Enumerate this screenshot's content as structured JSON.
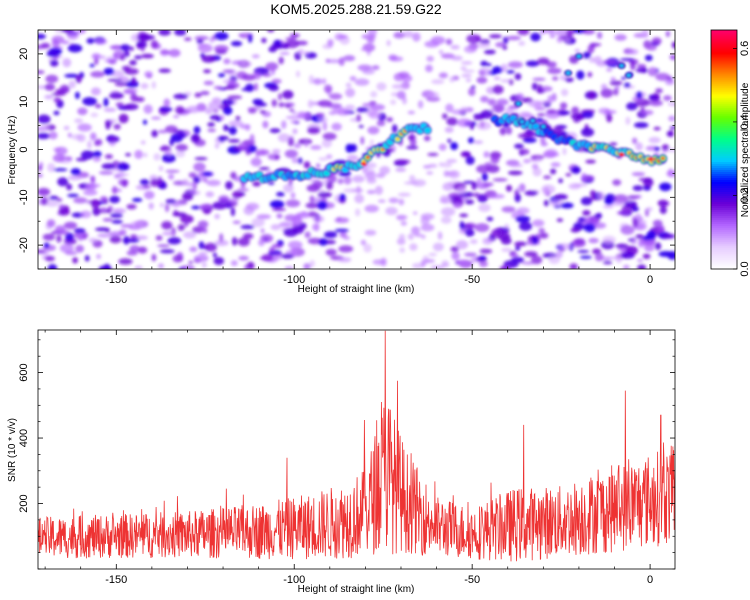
{
  "title": "KOM5.2025.288.21.59.G22",
  "chart_data": [
    {
      "type": "heatmap",
      "xlabel": "Height of straight line (km)",
      "ylabel": "Frequency (Hz)",
      "xlim": [
        -172,
        7
      ],
      "ylim": [
        -25,
        25
      ],
      "xticks": [
        -150,
        -100,
        -50,
        0
      ],
      "xtick_labels": [
        "-150",
        "-100",
        "-50",
        "0"
      ],
      "yticks": [
        -20,
        -10,
        0,
        10,
        20
      ],
      "ytick_labels": [
        "-20",
        "-10",
        "0",
        "10",
        "20"
      ],
      "colorbar": {
        "label": "Normalized spectral amplitude",
        "range": [
          0.0,
          0.65
        ],
        "ticks": [
          0.0,
          0.2,
          0.4,
          0.6
        ],
        "tick_labels": [
          "0.0",
          "0.2",
          "0.4",
          "0.6"
        ],
        "colormap": [
          "#ffffff",
          "#e6ccff",
          "#b266ff",
          "#6a00d6",
          "#0000ff",
          "#00ccff",
          "#00ff88",
          "#66ff00",
          "#ffff00",
          "#ff8800",
          "#ff0000",
          "#ff0066"
        ]
      },
      "ridge": [
        {
          "x": -114,
          "y": -6
        },
        {
          "x": -105,
          "y": -5.5
        },
        {
          "x": -95,
          "y": -5
        },
        {
          "x": -88,
          "y": -4
        },
        {
          "x": -82,
          "y": -3
        },
        {
          "x": -78,
          "y": -1
        },
        {
          "x": -72,
          "y": 2
        },
        {
          "x": -68,
          "y": 4
        },
        {
          "x": -62,
          "y": 4.5
        },
        {
          "x": -48,
          "y": 5.5
        },
        {
          "x": -40,
          "y": 6.5
        },
        {
          "x": -34,
          "y": 5
        },
        {
          "x": -28,
          "y": 3
        },
        {
          "x": -20,
          "y": 1
        },
        {
          "x": -12,
          "y": 0
        },
        {
          "x": -5,
          "y": -1
        },
        {
          "x": 0,
          "y": -2
        },
        {
          "x": 4,
          "y": -2.5
        }
      ]
    },
    {
      "type": "line",
      "xlabel": "Height of straight line (km)",
      "ylabel": "SNR (10 * v/v)",
      "xlim": [
        -172,
        7
      ],
      "ylim": [
        0,
        730
      ],
      "xticks": [
        -150,
        -100,
        -50,
        0
      ],
      "xtick_labels": [
        "-150",
        "-100",
        "-50",
        "0"
      ],
      "yticks": [
        200,
        400,
        600
      ],
      "ytick_labels": [
        "200",
        "400",
        "600"
      ],
      "series_color": "#ee3333",
      "envelope": [
        {
          "x": -172,
          "mean": 95,
          "amp": 75
        },
        {
          "x": -150,
          "mean": 100,
          "amp": 80
        },
        {
          "x": -130,
          "mean": 105,
          "amp": 85
        },
        {
          "x": -110,
          "mean": 115,
          "amp": 100
        },
        {
          "x": -95,
          "mean": 130,
          "amp": 120
        },
        {
          "x": -85,
          "mean": 150,
          "amp": 140
        },
        {
          "x": -80,
          "mean": 175,
          "amp": 160
        },
        {
          "x": -76,
          "mean": 260,
          "amp": 250
        },
        {
          "x": -74,
          "mean": 300,
          "amp": 320
        },
        {
          "x": -72,
          "mean": 260,
          "amp": 250
        },
        {
          "x": -68,
          "mean": 200,
          "amp": 180
        },
        {
          "x": -60,
          "mean": 130,
          "amp": 110
        },
        {
          "x": -50,
          "mean": 110,
          "amp": 95
        },
        {
          "x": -38,
          "mean": 135,
          "amp": 135
        },
        {
          "x": -25,
          "mean": 145,
          "amp": 130
        },
        {
          "x": -10,
          "mean": 185,
          "amp": 160
        },
        {
          "x": 0,
          "mean": 210,
          "amp": 170
        },
        {
          "x": 7,
          "mean": 230,
          "amp": 180
        }
      ],
      "peaks": [
        {
          "x": -74.4,
          "y": 728
        },
        {
          "x": -75.5,
          "y": 510
        },
        {
          "x": -71,
          "y": 575
        },
        {
          "x": -80.3,
          "y": 455
        },
        {
          "x": -7,
          "y": 545
        },
        {
          "x": -35.5,
          "y": 440
        },
        {
          "x": 3,
          "y": 470
        },
        {
          "x": -102,
          "y": 340
        }
      ]
    }
  ]
}
